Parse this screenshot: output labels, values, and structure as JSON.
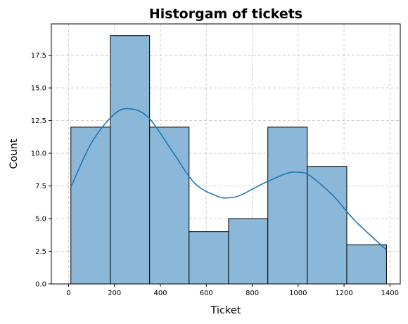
{
  "chart_data": {
    "type": "bar",
    "title": "Historgam of tickets",
    "xlabel": "Ticket",
    "ylabel": "Count",
    "xlim": [
      -75,
      1445
    ],
    "ylim": [
      0,
      19.9
    ],
    "xticks": [
      0,
      200,
      400,
      600,
      800,
      1000,
      1200,
      1400
    ],
    "xtick_labels": [
      "0",
      "200",
      "400",
      "600",
      "800",
      "1000",
      "1200",
      "1400"
    ],
    "yticks": [
      0,
      2.5,
      5,
      7.5,
      10,
      12.5,
      15,
      17.5
    ],
    "ytick_labels": [
      "0.0",
      "2.5",
      "5.0",
      "7.5",
      "10.0",
      "12.5",
      "15.0",
      "17.5"
    ],
    "grid": true,
    "bin_edges": [
      10,
      182,
      353,
      525,
      697,
      868,
      1040,
      1212,
      1385
    ],
    "counts": [
      12,
      19,
      12,
      4,
      5,
      12,
      9,
      3
    ],
    "kde": {
      "x": [
        10,
        100,
        200,
        270,
        350,
        450,
        550,
        650,
        700,
        750,
        850,
        950,
        1000,
        1050,
        1150,
        1250,
        1385
      ],
      "y": [
        7.4,
        10.8,
        13.0,
        13.4,
        12.7,
        10.2,
        7.7,
        6.7,
        6.6,
        6.8,
        7.7,
        8.45,
        8.55,
        8.3,
        6.8,
        4.8,
        2.6
      ]
    },
    "colors": {
      "bar": "#8bb8d8",
      "edge": "#000000",
      "kde": "#1f77b4"
    }
  }
}
